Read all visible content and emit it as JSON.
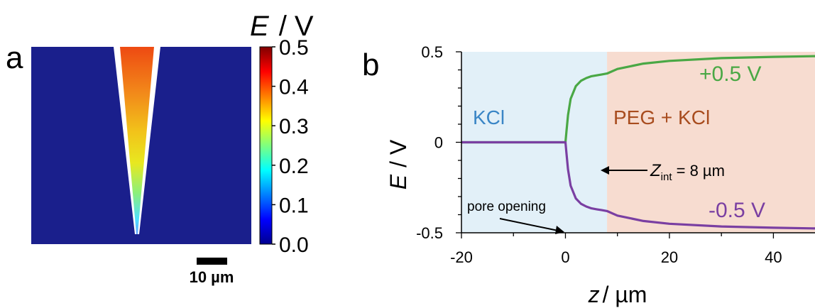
{
  "panel_a": {
    "label": "a",
    "colorbar": {
      "title_var": "E",
      "title_unit": "/ V",
      "ticks": [
        "0.5",
        "0.4",
        "0.3",
        "0.2",
        "0.1",
        "0.0"
      ],
      "tick_values": [
        0.5,
        0.4,
        0.3,
        0.2,
        0.1,
        0.0
      ],
      "range": [
        0.0,
        0.5
      ],
      "colormap": "jet"
    },
    "scalebar_label": "10 µm",
    "colors": {
      "background": "#1a1f8c",
      "wall": "#ffffff"
    }
  },
  "panel_b": {
    "label": "b",
    "region_left_label": "KCl",
    "region_right_label": "PEG + KCl",
    "series_top_label": "+0.5 V",
    "series_bottom_label": "-0.5 V",
    "interface_annotation": {
      "var": "Z",
      "sub": "int",
      "rest": " = 8 µm"
    },
    "pore_annotation": "pore opening",
    "colors": {
      "left_region": "#e2f0f8",
      "right_region": "#f7dcd0",
      "left_label": "#3a86c6",
      "right_label": "#a84c1e",
      "top_series": "#4aa845",
      "bottom_series": "#7a3fa2"
    }
  },
  "chart_data": [
    {
      "type": "heatmap",
      "panel": "a",
      "colorbar_label": "E / V",
      "colorbar_range": [
        0.0,
        0.5
      ],
      "colorbar_ticks": [
        0.0,
        0.1,
        0.2,
        0.3,
        0.4,
        0.5
      ],
      "description_values": "Potential inside conical pore rises from 0.0 at the tip to 0.5 at the base"
    },
    {
      "type": "line",
      "panel": "b",
      "xlabel": "z / µm",
      "ylabel": "E / V",
      "xlim": [
        -20,
        48
      ],
      "ylim": [
        -0.5,
        0.5
      ],
      "xticks": [
        -20,
        0,
        20,
        40
      ],
      "yticks": [
        -0.5,
        0,
        0.5
      ],
      "ytick_labels": [
        "-0.5",
        "0",
        "0.5"
      ],
      "regions": [
        {
          "label": "KCl",
          "x_range": [
            -20,
            8
          ]
        },
        {
          "label": "PEG + KCl",
          "x_range": [
            8,
            48
          ]
        }
      ],
      "series": [
        {
          "name": "+0.5 V",
          "x": [
            -20,
            -10,
            0,
            0.2,
            0.5,
            1,
            2,
            3,
            4,
            5,
            6,
            7,
            8,
            10,
            15,
            20,
            30,
            40,
            48
          ],
          "y": [
            0,
            0,
            0,
            0.06,
            0.15,
            0.24,
            0.31,
            0.34,
            0.355,
            0.365,
            0.37,
            0.375,
            0.38,
            0.405,
            0.435,
            0.45,
            0.465,
            0.472,
            0.476
          ]
        },
        {
          "name": "-0.5 V",
          "x": [
            -20,
            -10,
            0,
            0.2,
            0.5,
            1,
            2,
            3,
            4,
            5,
            6,
            7,
            8,
            10,
            15,
            20,
            30,
            40,
            48
          ],
          "y": [
            0,
            0,
            0,
            -0.06,
            -0.15,
            -0.24,
            -0.31,
            -0.34,
            -0.355,
            -0.365,
            -0.37,
            -0.375,
            -0.38,
            -0.405,
            -0.435,
            -0.45,
            -0.465,
            -0.472,
            -0.476
          ]
        }
      ]
    }
  ]
}
